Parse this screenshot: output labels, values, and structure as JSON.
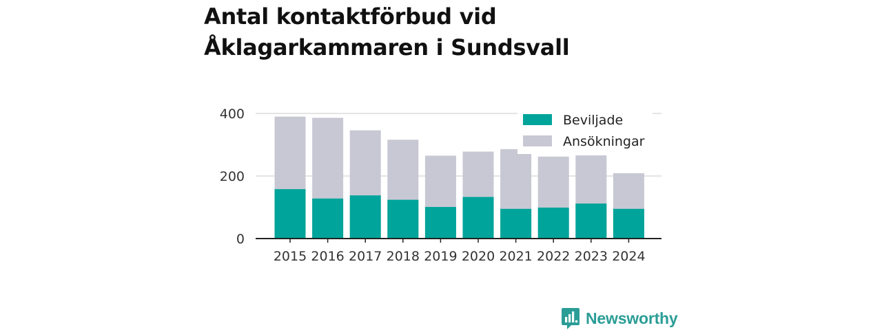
{
  "title": {
    "line1": "Antal kontaktförbud vid",
    "line2": "Åklagarkammaren i Sundsvall"
  },
  "chart_data": {
    "type": "bar",
    "stacked": false,
    "overlay": true,
    "categories": [
      "2015",
      "2016",
      "2017",
      "2018",
      "2019",
      "2020",
      "2021",
      "2022",
      "2023",
      "2024"
    ],
    "series": [
      {
        "name": "Ansökningar",
        "color": "#c8c8d4",
        "values": [
          390,
          386,
          346,
          316,
          265,
          278,
          286,
          262,
          266,
          209
        ]
      },
      {
        "name": "Beviljade",
        "color": "#00a49a",
        "values": [
          158,
          128,
          138,
          124,
          101,
          133,
          95,
          99,
          112,
          95
        ]
      }
    ],
    "yticks": [
      0,
      200,
      400
    ],
    "ylim": [
      0,
      400
    ],
    "grid": true,
    "legend": {
      "position": "top-right",
      "entries": [
        "Beviljade",
        "Ansökningar"
      ]
    }
  },
  "brand": {
    "name": "Newsworthy",
    "color": "#2a9d96",
    "icon": "newsworthy-logo-icon"
  }
}
